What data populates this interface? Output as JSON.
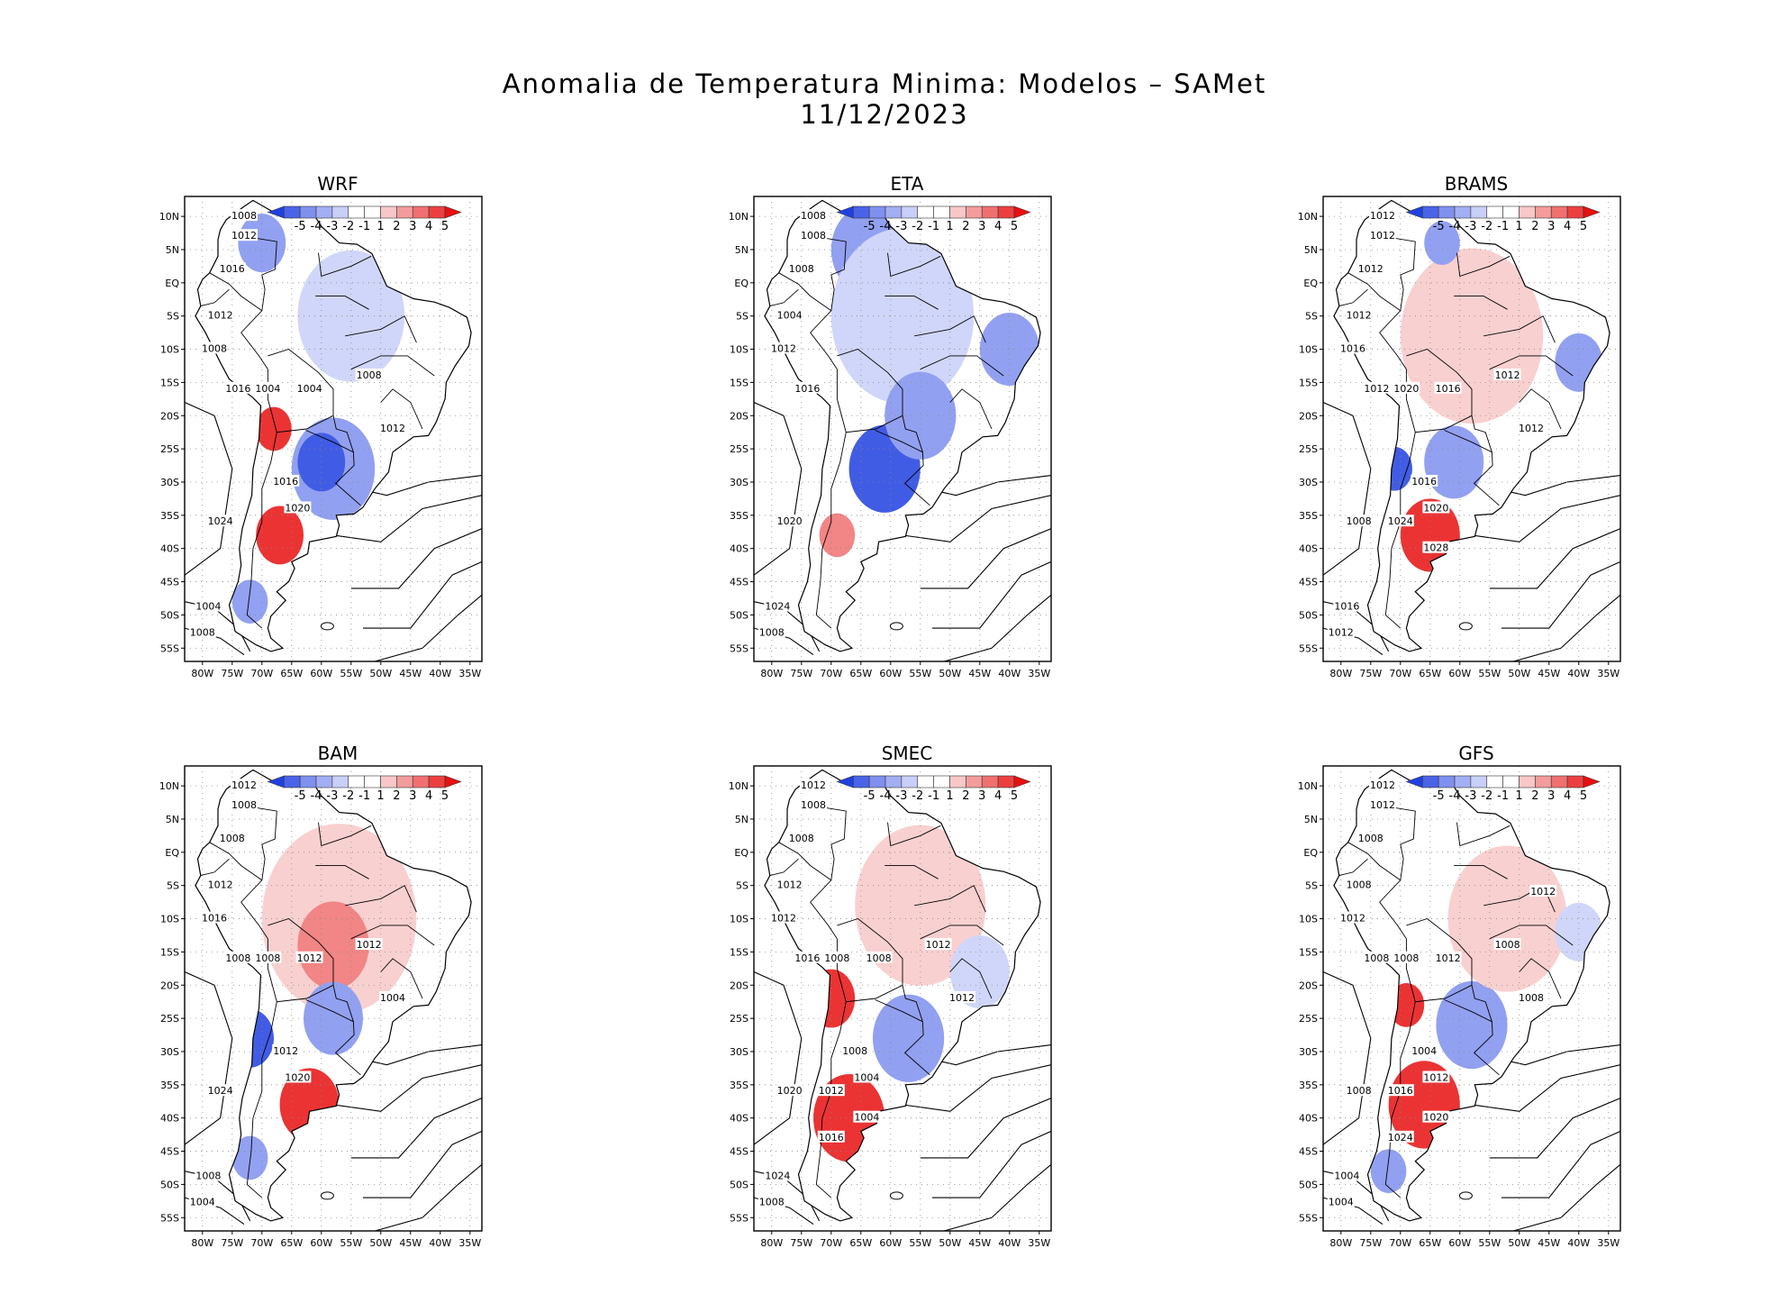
{
  "figure": {
    "title": "Anomalia de Temperatura Minima: Modelos – SAMet",
    "date": "11/12/2023"
  },
  "colors": {
    "strong_cold": "#2040e0",
    "cold": "#7f90ef",
    "weak_cold": "#c8cff8",
    "weak_warm": "#f8c8c8",
    "warm": "#f07070",
    "strong_warm": "#e81010",
    "land": "#ffffff",
    "line": "#000000"
  },
  "axes": {
    "lat_labels": [
      "10N",
      "5N",
      "EQ",
      "5S",
      "10S",
      "15S",
      "20S",
      "25S",
      "30S",
      "35S",
      "40S",
      "45S",
      "50S",
      "55S"
    ],
    "lon_labels": [
      "80W",
      "75W",
      "70W",
      "65W",
      "60W",
      "55W",
      "50W",
      "45W",
      "40W",
      "35W"
    ]
  },
  "colorbar_labels": [
    "-5",
    "-4",
    "-3",
    "-2",
    "-1",
    "1",
    "2",
    "3",
    "4",
    "5"
  ],
  "panels": [
    {
      "name": "WRF",
      "anomalies": [
        {
          "kind": "cold",
          "lon": -58,
          "lat": -28,
          "r": 7
        },
        {
          "kind": "strong_cold",
          "lon": -60,
          "lat": -27,
          "r": 4
        },
        {
          "kind": "cold",
          "lon": -70,
          "lat": 6,
          "r": 4
        },
        {
          "kind": "weak_cold",
          "lon": -55,
          "lat": -5,
          "r": 9
        },
        {
          "kind": "strong_warm",
          "lon": -67,
          "lat": -38,
          "r": 4
        },
        {
          "kind": "strong_warm",
          "lon": -68,
          "lat": -22,
          "r": 3
        },
        {
          "kind": "cold",
          "lon": -72,
          "lat": -48,
          "r": 3
        }
      ],
      "isobars": [
        "1008",
        "1012",
        "1016",
        "1012",
        "1008",
        "1016",
        "1004",
        "1004",
        "1008",
        "1012",
        "1016",
        "1020",
        "1024",
        "1004",
        "1008"
      ]
    },
    {
      "name": "ETA",
      "anomalies": [
        {
          "kind": "strong_cold",
          "lon": -61,
          "lat": -28,
          "r": 6
        },
        {
          "kind": "cold",
          "lon": -64,
          "lat": 5,
          "r": 6
        },
        {
          "kind": "cold",
          "lon": -40,
          "lat": -10,
          "r": 5
        },
        {
          "kind": "weak_cold",
          "lon": -58,
          "lat": -5,
          "r": 12
        },
        {
          "kind": "warm",
          "lon": -69,
          "lat": -38,
          "r": 3
        },
        {
          "kind": "cold",
          "lon": -55,
          "lat": -20,
          "r": 6
        }
      ],
      "isobars": [
        "1008",
        "1008",
        "1008",
        "1004",
        "1012",
        "1016",
        "1020",
        "1024",
        "1008"
      ]
    },
    {
      "name": "BRAMS",
      "anomalies": [
        {
          "kind": "weak_warm",
          "lon": -58,
          "lat": -8,
          "r": 12
        },
        {
          "kind": "strong_warm",
          "lon": -65,
          "lat": -38,
          "r": 5
        },
        {
          "kind": "cold",
          "lon": -61,
          "lat": -27,
          "r": 5
        },
        {
          "kind": "strong_cold",
          "lon": -71,
          "lat": -28,
          "r": 3
        },
        {
          "kind": "cold",
          "lon": -40,
          "lat": -12,
          "r": 4
        },
        {
          "kind": "cold",
          "lon": -63,
          "lat": 6,
          "r": 3
        }
      ],
      "isobars": [
        "1012",
        "1012",
        "1012",
        "1012",
        "1016",
        "1012",
        "1020",
        "1016",
        "1012",
        "1012",
        "1016",
        "1020",
        "1024",
        "1028",
        "1008",
        "1016",
        "1012"
      ]
    },
    {
      "name": "BAM",
      "anomalies": [
        {
          "kind": "weak_warm",
          "lon": -57,
          "lat": -10,
          "r": 13
        },
        {
          "kind": "warm",
          "lon": -58,
          "lat": -14,
          "r": 6
        },
        {
          "kind": "strong_warm",
          "lon": -62,
          "lat": -38,
          "r": 5
        },
        {
          "kind": "strong_cold",
          "lon": -72,
          "lat": -28,
          "r": 4
        },
        {
          "kind": "cold",
          "lon": -58,
          "lat": -25,
          "r": 5
        },
        {
          "kind": "cold",
          "lon": -72,
          "lat": -46,
          "r": 3
        }
      ],
      "isobars": [
        "1012",
        "1008",
        "1008",
        "1012",
        "1016",
        "1008",
        "1008",
        "1012",
        "1012",
        "1004",
        "1012",
        "1020",
        "1024",
        "1008",
        "1004"
      ]
    },
    {
      "name": "SMEC",
      "anomalies": [
        {
          "kind": "strong_warm",
          "lon": -67,
          "lat": -40,
          "r": 6
        },
        {
          "kind": "strong_warm",
          "lon": -70,
          "lat": -22,
          "r": 4
        },
        {
          "kind": "weak_warm",
          "lon": -55,
          "lat": -8,
          "r": 11
        },
        {
          "kind": "cold",
          "lon": -57,
          "lat": -28,
          "r": 6
        },
        {
          "kind": "weak_cold",
          "lon": -45,
          "lat": -18,
          "r": 5
        }
      ],
      "isobars": [
        "1012",
        "1008",
        "1008",
        "1012",
        "1012",
        "1016",
        "1008",
        "1008",
        "1012",
        "1012",
        "1008",
        "1004",
        "1012",
        "1004",
        "1016",
        "1020",
        "1024",
        "1008"
      ]
    },
    {
      "name": "GFS",
      "anomalies": [
        {
          "kind": "strong_warm",
          "lon": -66,
          "lat": -38,
          "r": 6
        },
        {
          "kind": "strong_warm",
          "lon": -69,
          "lat": -23,
          "r": 3
        },
        {
          "kind": "cold",
          "lon": -58,
          "lat": -26,
          "r": 6
        },
        {
          "kind": "weak_warm",
          "lon": -52,
          "lat": -10,
          "r": 10
        },
        {
          "kind": "weak_cold",
          "lon": -40,
          "lat": -12,
          "r": 4
        },
        {
          "kind": "cold",
          "lon": -72,
          "lat": -48,
          "r": 3
        }
      ],
      "isobars": [
        "1012",
        "1012",
        "1008",
        "1008",
        "1012",
        "1008",
        "1008",
        "1012",
        "1008",
        "1008",
        "1004",
        "1012",
        "1016",
        "1020",
        "1024",
        "1012",
        "1008",
        "1004",
        "1004"
      ]
    }
  ]
}
